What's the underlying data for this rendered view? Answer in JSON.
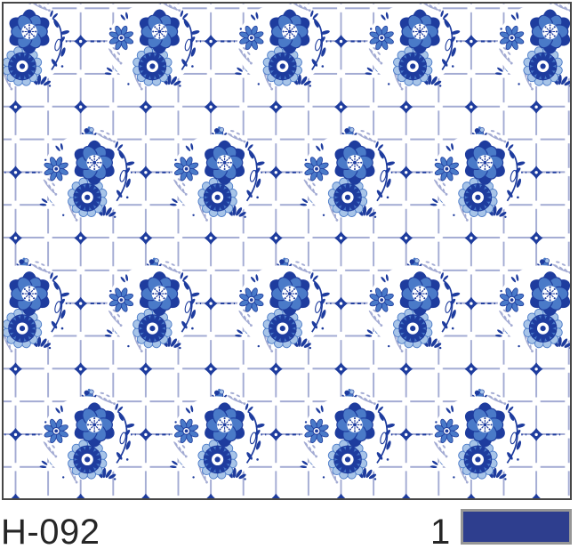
{
  "product": {
    "code": "H-092",
    "colorway_count": "1",
    "swatch_color": "#2e3e8e"
  },
  "pattern": {
    "motifs": [
      "rose-flower",
      "rosette-flower",
      "daisy-flower",
      "bud",
      "dot-flower",
      "tile-diamond"
    ],
    "colors": {
      "navy": "#1e3c9e",
      "medium_blue": "#4a7ac8",
      "light_blue": "#a7c4e8",
      "grid_line": "#a3abd3",
      "background": "#ffffff"
    }
  },
  "frame": {
    "border_color": "#474747",
    "text_color": "#262626"
  }
}
